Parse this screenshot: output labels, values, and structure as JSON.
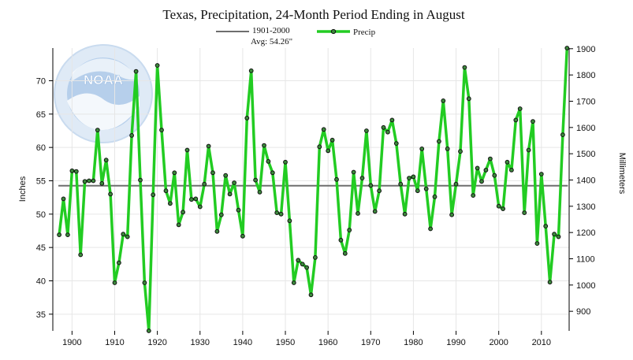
{
  "chart_data": {
    "type": "line",
    "title": "Texas, Precipitation, 24-Month Period Ending in August",
    "ylabel": "Inches",
    "y2label": "Millimeters",
    "xlabel": "",
    "grid": true,
    "legend": {
      "placement": "top-center",
      "avg_line_label": "1901-2000",
      "avg_line_sublabel": "Avg: 54.26\"",
      "series_label": "Precip"
    },
    "average_in": 54.26,
    "ylim": [
      32.5,
      74.9
    ],
    "xlim": [
      1895.5,
      2016.5
    ],
    "x_ticks": [
      1900,
      1910,
      1920,
      1930,
      1940,
      1950,
      1960,
      1970,
      1980,
      1990,
      2000,
      2010
    ],
    "y_ticks": [
      35,
      40,
      45,
      50,
      55,
      60,
      65,
      70
    ],
    "y2_ticks": [
      900,
      1000,
      1100,
      1200,
      1300,
      1400,
      1500,
      1600,
      1700,
      1800,
      1900
    ],
    "colors": {
      "series": "#22cc22",
      "average": "#6e6e6e",
      "marker_fill": "#3c8a3c",
      "watermark": "#7aa8d8"
    },
    "watermark_text": "NOAA",
    "series": [
      {
        "name": "Precip",
        "x": [
          1897,
          1898,
          1899,
          1900,
          1901,
          1902,
          1903,
          1904,
          1905,
          1906,
          1907,
          1908,
          1909,
          1910,
          1911,
          1912,
          1913,
          1914,
          1915,
          1916,
          1917,
          1918,
          1919,
          1920,
          1921,
          1922,
          1923,
          1924,
          1925,
          1926,
          1927,
          1928,
          1929,
          1930,
          1931,
          1932,
          1933,
          1934,
          1935,
          1936,
          1937,
          1938,
          1939,
          1940,
          1941,
          1942,
          1943,
          1944,
          1945,
          1946,
          1947,
          1948,
          1949,
          1950,
          1951,
          1952,
          1953,
          1954,
          1955,
          1956,
          1957,
          1958,
          1959,
          1960,
          1961,
          1962,
          1963,
          1964,
          1965,
          1966,
          1967,
          1968,
          1969,
          1970,
          1971,
          1972,
          1973,
          1974,
          1975,
          1976,
          1977,
          1978,
          1979,
          1980,
          1981,
          1982,
          1983,
          1984,
          1985,
          1986,
          1987,
          1988,
          1989,
          1990,
          1991,
          1992,
          1993,
          1994,
          1995,
          1996,
          1997,
          1998,
          1999,
          2000,
          2001,
          2002,
          2003,
          2004,
          2005,
          2006,
          2007,
          2008,
          2009,
          2010,
          2011,
          2012,
          2013,
          2014,
          2015,
          2016
        ],
        "values": [
          46.9,
          52.3,
          46.9,
          56.5,
          56.4,
          43.9,
          54.9,
          55.0,
          55.0,
          62.6,
          54.6,
          58.1,
          53.0,
          39.7,
          42.7,
          47.0,
          46.6,
          61.8,
          71.4,
          55.1,
          39.7,
          32.5,
          52.9,
          72.3,
          62.6,
          53.5,
          51.6,
          56.2,
          48.4,
          50.3,
          59.6,
          52.2,
          52.3,
          51.1,
          54.5,
          60.2,
          56.2,
          47.4,
          49.9,
          55.8,
          53.0,
          54.7,
          50.6,
          46.7,
          64.4,
          71.5,
          55.1,
          53.3,
          60.3,
          57.9,
          56.2,
          50.2,
          50.0,
          57.8,
          49.0,
          39.7,
          43.1,
          42.5,
          42.0,
          37.9,
          43.5,
          60.1,
          62.7,
          59.5,
          61.1,
          55.2,
          46.1,
          44.1,
          47.6,
          56.3,
          50.1,
          55.4,
          62.5,
          54.3,
          50.4,
          53.5,
          63.0,
          62.3,
          64.1,
          60.6,
          54.5,
          50.0,
          55.4,
          55.6,
          53.5,
          59.8,
          53.8,
          47.8,
          52.6,
          60.9,
          67.0,
          59.8,
          49.9,
          54.5,
          59.4,
          72.0,
          67.3,
          52.8,
          56.9,
          54.9,
          56.6,
          58.3,
          55.8,
          51.2,
          50.8,
          57.8,
          56.6,
          64.1,
          65.8,
          50.2,
          59.6,
          63.9,
          45.6,
          56.0,
          48.2,
          39.8,
          47.0,
          46.6,
          61.9,
          74.9
        ]
      }
    ]
  }
}
